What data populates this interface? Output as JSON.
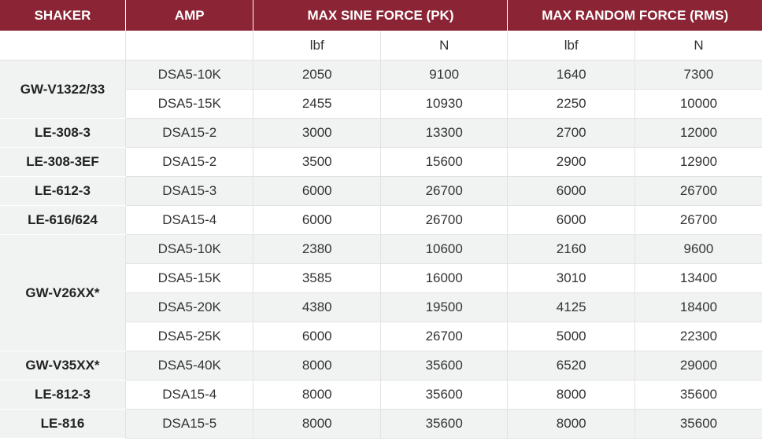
{
  "header": {
    "shaker": "SHAKER",
    "amp": "AMP",
    "sine": "MAX SINE FORCE (PK)",
    "random": "MAX RANDOM FORCE (RMS)",
    "units": [
      "lbf",
      "N",
      "lbf",
      "N"
    ]
  },
  "colors": {
    "header_bg": "#8b2435",
    "row_alt_bg": "#f1f3f2"
  },
  "groups": [
    {
      "shaker": "GW-V1322/33",
      "rows": [
        {
          "amp": "DSA5-10K",
          "sine_lbf": "2050",
          "sine_n": "9100",
          "rand_lbf": "1640",
          "rand_n": "7300"
        },
        {
          "amp": "DSA5-15K",
          "sine_lbf": "2455",
          "sine_n": "10930",
          "rand_lbf": "2250",
          "rand_n": "10000"
        }
      ]
    },
    {
      "shaker": "LE-308-3",
      "rows": [
        {
          "amp": "DSA15-2",
          "sine_lbf": "3000",
          "sine_n": "13300",
          "rand_lbf": "2700",
          "rand_n": "12000"
        }
      ]
    },
    {
      "shaker": "LE-308-3EF",
      "rows": [
        {
          "amp": "DSA15-2",
          "sine_lbf": "3500",
          "sine_n": "15600",
          "rand_lbf": "2900",
          "rand_n": "12900"
        }
      ]
    },
    {
      "shaker": "LE-612-3",
      "rows": [
        {
          "amp": "DSA15-3",
          "sine_lbf": "6000",
          "sine_n": "26700",
          "rand_lbf": "6000",
          "rand_n": "26700"
        }
      ]
    },
    {
      "shaker": "LE-616/624",
      "rows": [
        {
          "amp": "DSA15-4",
          "sine_lbf": "6000",
          "sine_n": "26700",
          "rand_lbf": "6000",
          "rand_n": "26700"
        }
      ]
    },
    {
      "shaker": "GW-V26XX*",
      "rows": [
        {
          "amp": "DSA5-10K",
          "sine_lbf": "2380",
          "sine_n": "10600",
          "rand_lbf": "2160",
          "rand_n": "9600"
        },
        {
          "amp": "DSA5-15K",
          "sine_lbf": "3585",
          "sine_n": "16000",
          "rand_lbf": "3010",
          "rand_n": "13400"
        },
        {
          "amp": "DSA5-20K",
          "sine_lbf": "4380",
          "sine_n": "19500",
          "rand_lbf": "4125",
          "rand_n": "18400"
        },
        {
          "amp": "DSA5-25K",
          "sine_lbf": "6000",
          "sine_n": "26700",
          "rand_lbf": "5000",
          "rand_n": "22300"
        }
      ]
    },
    {
      "shaker": "GW-V35XX*",
      "rows": [
        {
          "amp": "DSA5-40K",
          "sine_lbf": "8000",
          "sine_n": "35600",
          "rand_lbf": "6520",
          "rand_n": "29000"
        }
      ]
    },
    {
      "shaker": "LE-812-3",
      "rows": [
        {
          "amp": "DSA15-4",
          "sine_lbf": "8000",
          "sine_n": "35600",
          "rand_lbf": "8000",
          "rand_n": "35600"
        }
      ]
    },
    {
      "shaker": "LE-816",
      "rows": [
        {
          "amp": "DSA15-5",
          "sine_lbf": "8000",
          "sine_n": "35600",
          "rand_lbf": "8000",
          "rand_n": "35600"
        }
      ]
    }
  ]
}
